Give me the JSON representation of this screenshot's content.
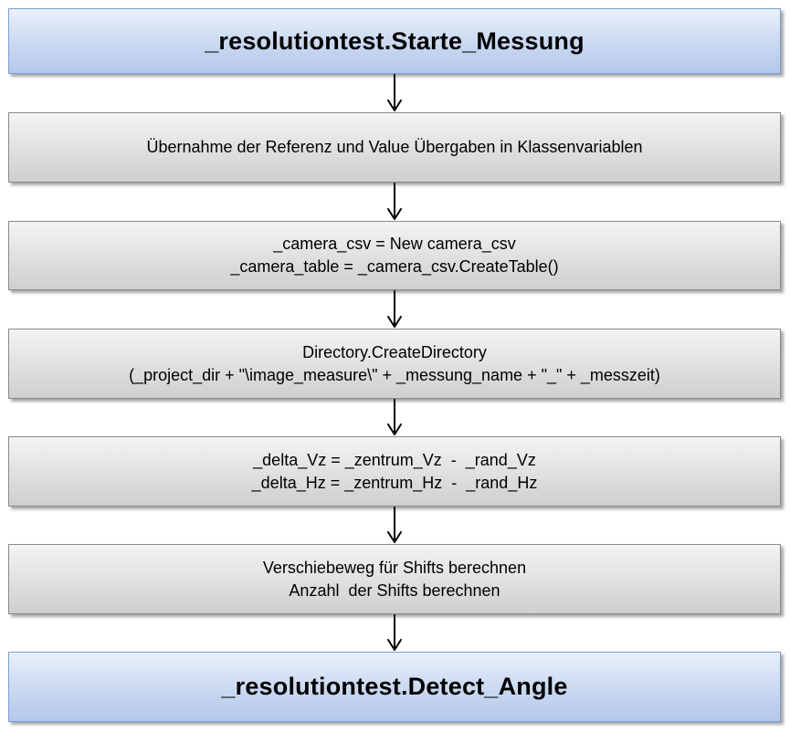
{
  "flowchart": {
    "start": {
      "title": "_resolutiontest.Starte_Messung"
    },
    "steps": [
      {
        "lines": [
          "Übernahme der Referenz und Value Übergaben in Klassenvariablen"
        ]
      },
      {
        "lines": [
          "_camera_csv = New camera_csv",
          "_camera_table = _camera_csv.CreateTable()"
        ]
      },
      {
        "lines": [
          "Directory.CreateDirectory",
          "(_project_dir + \"\\image_measure\\\" + _messung_name + \"_\" + _messzeit)"
        ]
      },
      {
        "lines": [
          "_delta_Vz = _zentrum_Vz  -  _rand_Vz",
          "_delta_Hz = _zentrum_Hz  -  _rand_Hz"
        ]
      },
      {
        "lines": [
          "Verschiebeweg für Shifts berechnen",
          "Anzahl  der Shifts berechnen"
        ]
      }
    ],
    "end": {
      "title": "_resolutiontest.Detect_Angle"
    }
  }
}
